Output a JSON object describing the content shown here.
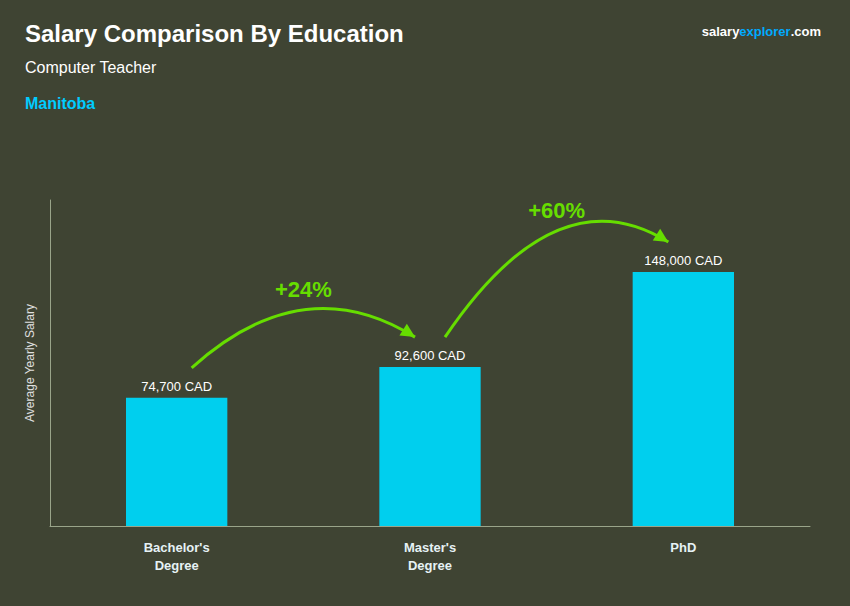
{
  "chart_data": {
    "type": "bar",
    "title": "Salary Comparison By Education",
    "subtitle": "Computer Teacher",
    "ylabel": "Average Yearly Salary",
    "categories": [
      "Bachelor's\nDegree",
      "Master's\nDegree",
      "PhD"
    ],
    "values": [
      74700,
      92600,
      148000
    ],
    "value_labels": [
      "74,700 CAD",
      "92,600 CAD",
      "148,000 CAD"
    ],
    "color": "#00cfee",
    "ylim": [
      0,
      190000
    ],
    "grid": false,
    "data_labels": true,
    "tick_labels": "x",
    "annotations": [
      {
        "text": "+24%",
        "color": "#66dd00",
        "from": "Bachelor's\nDegree",
        "to": "Master's\nDegree"
      },
      {
        "text": "+60%",
        "color": "#66dd00",
        "from": "Master's\nDegree",
        "to": "PhD"
      },
      {
        "text": "Manitoba",
        "color": "#00ccff"
      },
      {
        "text": "salary",
        "color": "#ffffff"
      },
      {
        "text": "explorer",
        "color": "#00aaff"
      },
      {
        "text": ".com",
        "color": "#ffffff"
      }
    ]
  }
}
